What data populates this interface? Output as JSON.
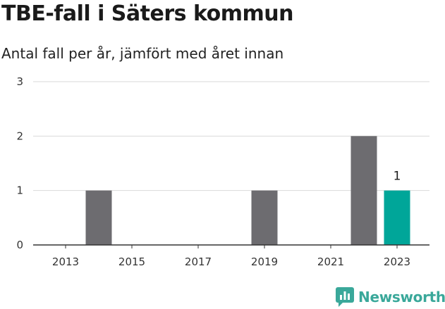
{
  "header": {
    "title": "TBE-fall i Säters kommun",
    "subtitle": "Antal fall per år, jämfört med året innan"
  },
  "brand": {
    "name": "Newsworthy",
    "icon": "newsworthy-logo-icon",
    "color": "#3aa89a"
  },
  "chart_data": {
    "type": "bar",
    "categories": [
      "2013",
      "2014",
      "2015",
      "2016",
      "2017",
      "2018",
      "2019",
      "2020",
      "2021",
      "2022",
      "2023"
    ],
    "values": [
      0,
      1,
      0,
      0,
      0,
      0,
      1,
      0,
      0,
      2,
      1
    ],
    "x_tick_labels": [
      "2013",
      "2015",
      "2017",
      "2019",
      "2021",
      "2023"
    ],
    "ylim": [
      0,
      3
    ],
    "y_ticks": [
      0,
      1,
      2,
      3
    ],
    "grid": true,
    "colors": {
      "default": "#6d6c70",
      "highlight": "#00a699"
    },
    "highlight_category": "2023",
    "data_labels": [
      {
        "category": "2023",
        "text": "1"
      }
    ]
  }
}
